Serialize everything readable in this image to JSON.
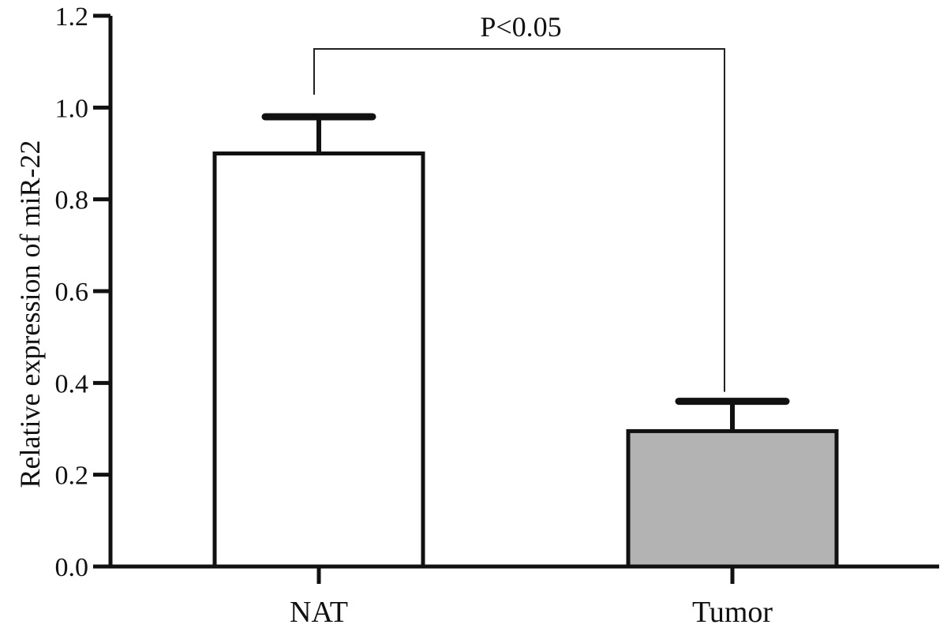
{
  "chart_data": {
    "type": "bar",
    "categories": [
      "NAT",
      "Tumor"
    ],
    "values": [
      0.9,
      0.295
    ],
    "errors": [
      0.08,
      0.065
    ],
    "title": "",
    "xlabel": "",
    "ylabel": "Relative expression of miR-22",
    "ylim": [
      0,
      1.2
    ],
    "yticks": [
      "0.0",
      "0.2",
      "0.4",
      "0.6",
      "0.8",
      "1.0",
      "1.2"
    ],
    "bar_colors": [
      "#ffffff",
      "#b3b3b3"
    ],
    "significance": {
      "label": "P<0.05",
      "between": [
        "NAT",
        "Tumor"
      ]
    },
    "grid": false,
    "legend": "none"
  }
}
